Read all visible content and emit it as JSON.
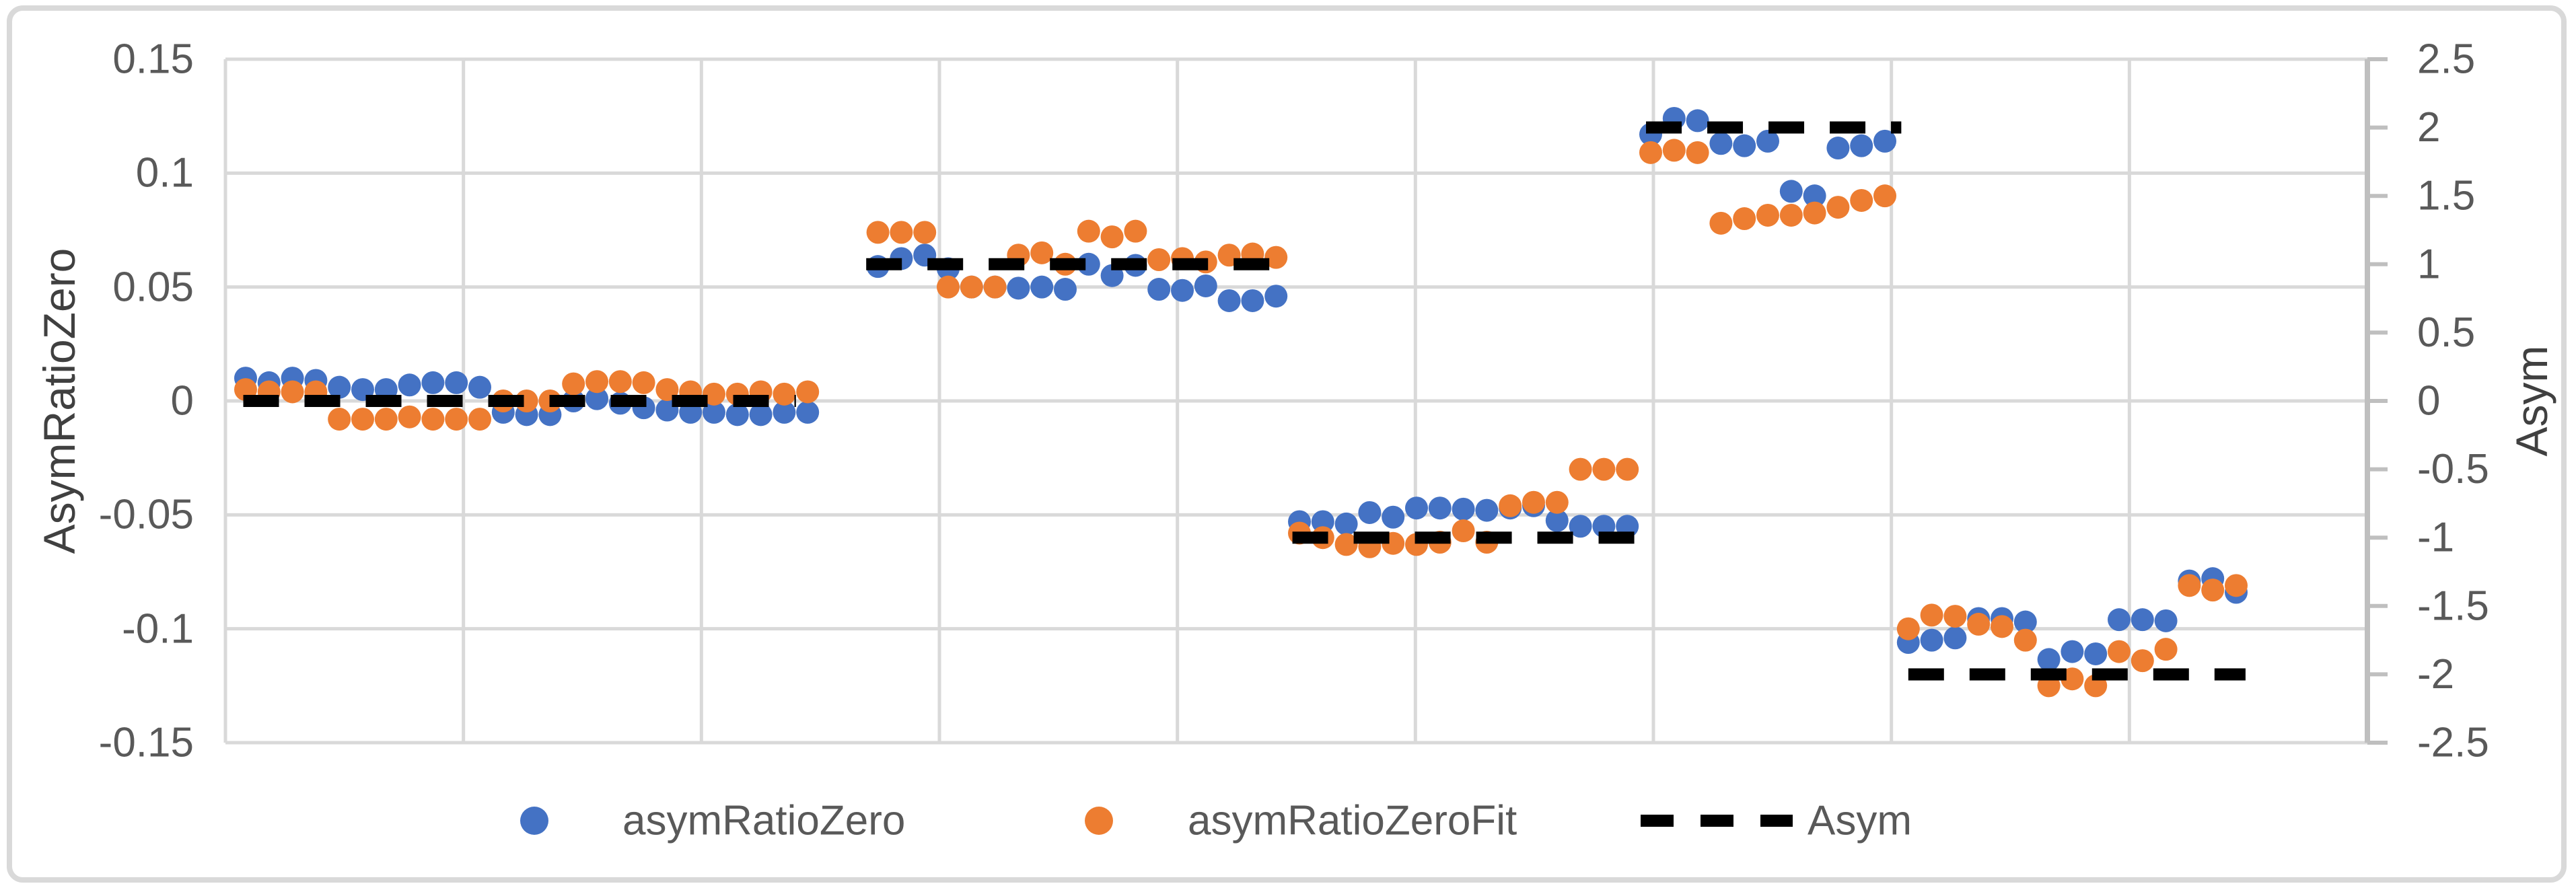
{
  "chart_data": {
    "type": "scatter",
    "title": "",
    "y_axis_left": {
      "label": "AsymRatioZero",
      "tick_labels": [
        "0.15",
        "0.1",
        "0.05",
        "0",
        "-0.05",
        "-0.1",
        "-0.15"
      ],
      "range": [
        -0.15,
        0.15
      ],
      "gridlines": true
    },
    "y_axis_right": {
      "label": "Asym",
      "tick_labels": [
        "2.5",
        "2",
        "1.5",
        "1",
        "0.5",
        "0",
        "-0.5",
        "-1",
        "-1.5",
        "-2",
        "-2.5"
      ],
      "range": [
        -2.5,
        2.5
      ]
    },
    "x_axis": {
      "label": "",
      "tick_labels": [],
      "vertical_gridline_columns": 9
    },
    "colors": {
      "asymRatioZero": "#4472C4",
      "asymRatioZeroFit": "#ED7D31",
      "asym_line": "#000000",
      "gridline": "#D9D9D9",
      "axis_line": "#BFBFBF",
      "tick_text": "#595959",
      "title_text": "#404040"
    },
    "legend": {
      "position": "bottom",
      "items": [
        {
          "label": "asymRatioZero",
          "marker": "circle",
          "color": "#4472C4"
        },
        {
          "label": "asymRatioZeroFit",
          "marker": "circle",
          "color": "#ED7D31"
        },
        {
          "label": "Asym",
          "marker": "dashed-line",
          "color": "#000000"
        }
      ]
    },
    "clusters": [
      {
        "asym": 0,
        "run_start": 0,
        "dash_span": [
          -0.1,
          23.5
        ],
        "asymRatioZero": [
          0.01,
          0.008,
          0.01,
          0.009,
          0.006,
          0.005,
          0.005,
          0.007,
          0.008,
          0.008,
          0.006,
          -0.005,
          -0.006,
          -0.006,
          0.0,
          0.001,
          -0.001,
          -0.003,
          -0.004,
          -0.005,
          -0.005,
          -0.006,
          -0.006,
          -0.005,
          -0.005
        ],
        "asymRatioZeroFit": [
          0.005,
          0.004,
          0.004,
          0.004,
          -0.008,
          -0.008,
          -0.008,
          -0.007,
          -0.008,
          -0.008,
          -0.008,
          0.0,
          0.0,
          0.0,
          0.0075,
          0.0085,
          0.0085,
          0.008,
          0.005,
          0.004,
          0.003,
          0.003,
          0.004,
          0.003,
          0.004
        ]
      },
      {
        "asym": 1,
        "run_start": 27,
        "dash_span": [
          26.5,
          44.1
        ],
        "asymRatioZero": [
          0.059,
          0.0625,
          0.064,
          0.058,
          0.05,
          0.05,
          0.0495,
          0.05,
          0.049,
          0.06,
          0.055,
          0.0595,
          0.049,
          0.0485,
          0.0505,
          0.044,
          0.044,
          0.046
        ],
        "asymRatioZeroFit": [
          0.074,
          0.074,
          0.074,
          0.05,
          0.05,
          0.05,
          0.064,
          0.065,
          0.06,
          0.0745,
          0.072,
          0.0745,
          0.062,
          0.0625,
          0.061,
          0.064,
          0.0645,
          0.063
        ]
      },
      {
        "asym": -1,
        "run_start": 45,
        "dash_span": [
          44.7,
          59.6
        ],
        "asymRatioZero": [
          -0.053,
          -0.053,
          -0.054,
          -0.049,
          -0.051,
          -0.047,
          -0.047,
          -0.0475,
          -0.048,
          -0.047,
          -0.046,
          -0.0525,
          -0.055,
          -0.055,
          -0.055
        ],
        "asymRatioZeroFit": [
          -0.058,
          -0.06,
          -0.063,
          -0.064,
          -0.0625,
          -0.063,
          -0.062,
          -0.057,
          -0.062,
          -0.046,
          -0.0445,
          -0.0445,
          -0.03,
          -0.03,
          -0.03
        ]
      },
      {
        "asym": 2,
        "run_start": 60,
        "dash_span": [
          59.8,
          70.7
        ],
        "asymRatioZero": [
          0.117,
          0.124,
          0.123,
          0.113,
          0.112,
          0.114,
          0.092,
          0.09,
          0.111,
          0.112,
          0.114
        ],
        "asymRatioZeroFit": [
          0.109,
          0.11,
          0.109,
          0.078,
          0.08,
          0.0815,
          0.0815,
          0.0825,
          0.085,
          0.088,
          0.09
        ]
      },
      {
        "asym": -2,
        "run_start": 71,
        "dash_span": [
          71.0,
          85.4
        ],
        "asymRatioZero": [
          -0.106,
          -0.105,
          -0.104,
          -0.0955,
          -0.0955,
          -0.097,
          -0.1135,
          -0.11,
          -0.111,
          -0.096,
          -0.096,
          -0.0965,
          -0.079,
          -0.078,
          -0.084
        ],
        "asymRatioZeroFit": [
          -0.1,
          -0.094,
          -0.0945,
          -0.098,
          -0.099,
          -0.105,
          -0.125,
          -0.122,
          -0.125,
          -0.11,
          -0.114,
          -0.109,
          -0.081,
          -0.083,
          -0.081
        ]
      }
    ]
  }
}
